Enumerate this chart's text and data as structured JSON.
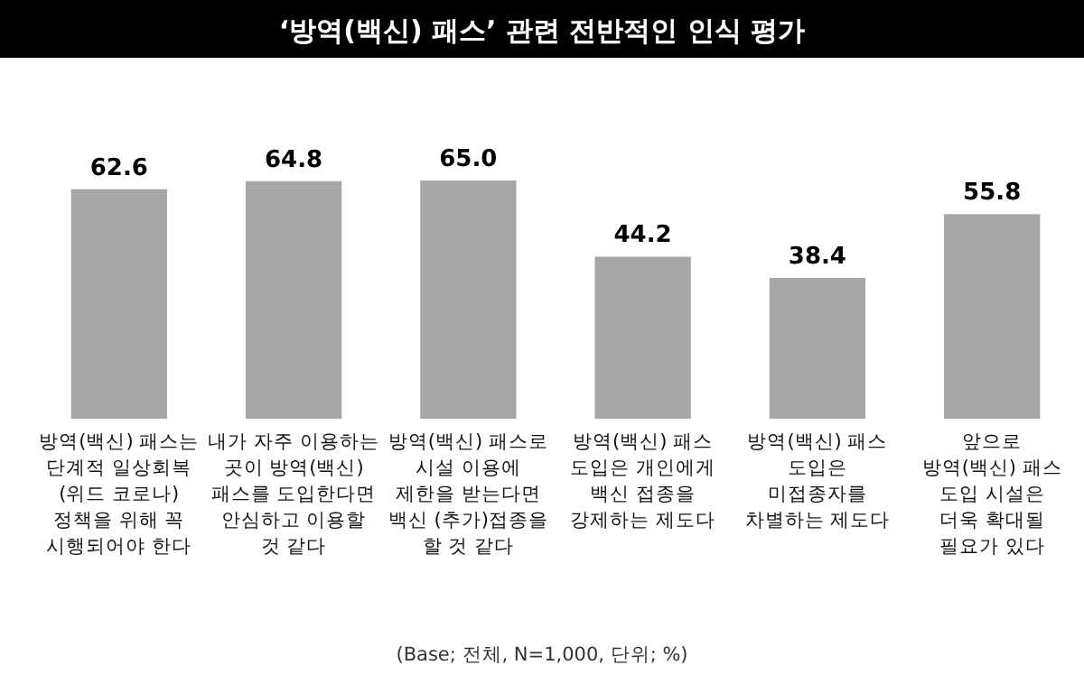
{
  "chart_data": {
    "type": "bar",
    "title": "‘방역(백신) 패스’ 관련 전반적인 인식 평가",
    "categories": [
      "방역(백신) 패스는\n단계적 일상회복\n(위드 코로나)\n정책을 위해 꼭\n시행되어야 한다",
      "내가 자주 이용하는\n곳이 방역(백신)\n패스를 도입한다면\n안심하고 이용할\n것 같다",
      "방역(백신) 패스로\n시설 이용에\n제한을 받는다면\n백신 (추가)접종을\n할 것 같다",
      "방역(백신) 패스\n도입은 개인에게\n백신 접종을\n강제하는 제도다",
      "방역(백신) 패스\n도입은\n미접종자를\n차별하는 제도다",
      "앞으로\n방역(백신) 패스\n도입 시설은\n더욱 확대될\n필요가 있다"
    ],
    "values": [
      62.6,
      64.8,
      65.0,
      44.2,
      38.4,
      55.8
    ],
    "color": "#a6a6a6",
    "data_labels": true,
    "value_labels": [
      "62.6",
      "64.8",
      "65.0",
      "44.2",
      "38.4",
      "55.8"
    ],
    "annotations": [
      "(Base; 전체, N=1,000, 단위; %)"
    ]
  }
}
